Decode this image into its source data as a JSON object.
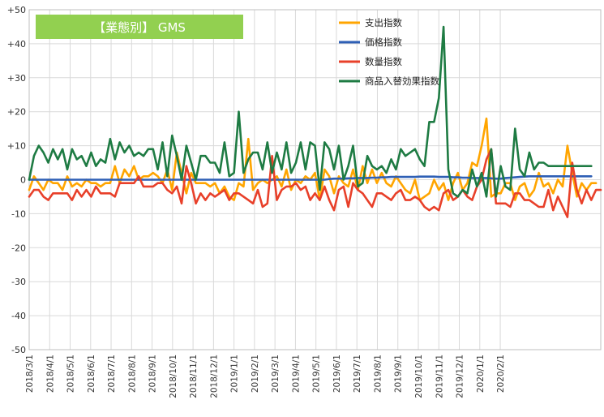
{
  "chart_data": {
    "type": "line",
    "title": "【業態別】 GMS",
    "title_bg": "#92d050",
    "ylim": [
      -50,
      50
    ],
    "y_ticks": [
      "+50",
      "+40",
      "+30",
      "+20",
      "+10",
      "0",
      "-10",
      "-20",
      "-30",
      "-40",
      "-50"
    ],
    "x_tick_labels": [
      "2018/3/1",
      "2018/4/1",
      "2018/5/1",
      "2018/6/1",
      "2018/7/1",
      "2018/8/1",
      "2018/9/1",
      "2018/10/1",
      "2018/11/1",
      "2018/12/1",
      "2019/1/1",
      "2019/2/1",
      "2019/3/1",
      "2019/4/1",
      "2019/5/1",
      "2019/6/1",
      "2019/7/1",
      "2019/8/1",
      "2019/9/1",
      "2019/10/1",
      "2019/11/1",
      "2019/12/1",
      "2020/1/1",
      "2020/2/1"
    ],
    "points_per_month": 4.3,
    "grid": true,
    "legend_position": "top-right",
    "series": [
      {
        "name": "支出指数",
        "color": "#ffa500",
        "values": [
          -3,
          1,
          -1,
          -3,
          0,
          -1,
          -1,
          -3,
          1,
          -2,
          -1,
          -2,
          0,
          -1,
          -1,
          -2,
          -1,
          -1,
          4,
          -1,
          3,
          1,
          4,
          0,
          1,
          1,
          2,
          1,
          -1,
          3,
          -3,
          8,
          2,
          -4,
          2,
          -1,
          -1,
          -1,
          -2,
          -1,
          -4,
          -2,
          -5,
          -6,
          -1,
          -2,
          12,
          -3,
          -1,
          0,
          -1,
          0,
          1,
          -2,
          3,
          -3,
          0,
          -1,
          1,
          0,
          2,
          -6,
          3,
          1,
          -4,
          1,
          -1,
          -2,
          3,
          -3,
          4,
          -1,
          3,
          -1,
          2,
          -1,
          -2,
          1,
          -1,
          -3,
          -4,
          0,
          -6,
          -5,
          -4,
          0,
          -3,
          -1,
          -6,
          -1,
          2,
          -3,
          -1,
          5,
          4,
          10,
          18,
          -5,
          -4,
          -4,
          -1,
          -1,
          -6,
          -2,
          -1,
          -5,
          -3,
          2,
          -2,
          -1,
          -4,
          0,
          -2,
          10,
          2,
          -5,
          -1,
          -3,
          -1,
          -1
        ],
        "label": ""
      },
      {
        "name": "価格指数",
        "color": "#2e5fb5",
        "values": [
          0,
          0,
          0,
          0,
          0,
          0,
          0,
          0,
          0,
          0,
          0,
          0,
          0,
          0,
          0,
          0,
          0,
          0,
          0,
          0,
          0,
          0,
          0,
          0,
          0,
          0,
          0,
          0,
          0,
          0,
          0,
          0,
          0,
          0,
          0,
          0,
          0,
          0,
          0,
          0,
          0,
          0,
          0,
          0,
          0,
          0,
          0,
          0,
          0,
          0,
          0,
          0,
          0,
          0,
          0,
          0,
          0,
          0,
          0,
          0,
          0,
          0,
          0,
          0.2,
          0.3,
          0.3,
          0.3,
          0.4,
          0.4,
          0.5,
          0.5,
          0.5,
          0.6,
          0.6,
          0.7,
          0.7,
          0.8,
          0.8,
          0.8,
          0.8,
          0.8,
          0.8,
          0.9,
          0.9,
          0.9,
          0.9,
          0.8,
          0.8,
          0.8,
          0.7,
          0.7,
          0.6,
          0.6,
          0.5,
          0.5,
          0.5,
          0.5,
          0.4,
          0.3,
          0.3,
          0.5,
          0.6,
          0.7,
          0.8,
          0.9,
          1,
          1,
          1,
          1,
          1,
          1,
          1,
          1,
          1,
          1,
          1,
          1,
          1,
          1
        ]
      },
      {
        "name": "数量指数",
        "color": "#e8402a",
        "values": [
          -5,
          -3,
          -3,
          -5,
          -6,
          -4,
          -4,
          -4,
          -4,
          -6,
          -3,
          -5,
          -3,
          -5,
          -2,
          -4,
          -4,
          -4,
          -5,
          -1,
          -1,
          -1,
          -1,
          1,
          -2,
          -2,
          -2,
          -1,
          -1,
          -3,
          -4,
          -2,
          -7,
          4,
          -1,
          -7,
          -4,
          -6,
          -4,
          -5,
          -4,
          -3,
          -6,
          -4,
          -4,
          -5,
          -6,
          -7,
          -3,
          -8,
          -7,
          7,
          -6,
          -3,
          -2,
          -2,
          -1,
          -3,
          -2,
          -6,
          -4,
          -6,
          -2,
          -6,
          -9,
          -3,
          -2,
          -8,
          -1,
          -3,
          -4,
          -6,
          -8,
          -4,
          -4,
          -5,
          -6,
          -4,
          -3,
          -6,
          -6,
          -5,
          -6,
          -8,
          -9,
          -8,
          -9,
          -4,
          -3,
          -6,
          -5,
          -3,
          -5,
          -6,
          -2,
          0,
          6,
          9,
          -7,
          -7,
          -7,
          -8,
          -4,
          -4,
          -6,
          -6,
          -7,
          -8,
          -8,
          -3,
          -9,
          -5,
          -8,
          -11,
          5,
          -3,
          -7,
          -3,
          -6,
          -3,
          -3
        ]
      },
      {
        "name": "商品入替効果指数",
        "color": "#1e7b43",
        "values": [
          0,
          7,
          10,
          8,
          5,
          9,
          6,
          9,
          3,
          9,
          6,
          7,
          4,
          8,
          4,
          6,
          5,
          12,
          6,
          11,
          8,
          10,
          7,
          8,
          7,
          9,
          9,
          3,
          11,
          1,
          13,
          7,
          0,
          10,
          5,
          0,
          7,
          7,
          5,
          5,
          2,
          11,
          1,
          2,
          20,
          2,
          6,
          8,
          8,
          3,
          11,
          2,
          8,
          3,
          11,
          2,
          5,
          11,
          3,
          11,
          10,
          -3,
          11,
          9,
          3,
          10,
          0,
          4,
          10,
          -2,
          -1,
          7,
          4,
          3,
          4,
          2,
          6,
          3,
          9,
          7,
          8,
          9,
          6,
          4,
          17,
          17,
          24,
          45,
          3,
          -4,
          -5,
          -3,
          -4,
          3,
          -2,
          2,
          -5,
          9,
          -5,
          4,
          -2,
          -3,
          15,
          3,
          1,
          8,
          3,
          5,
          5,
          4,
          4,
          4,
          4,
          4,
          4,
          4,
          4,
          4,
          4
        ]
      }
    ]
  }
}
